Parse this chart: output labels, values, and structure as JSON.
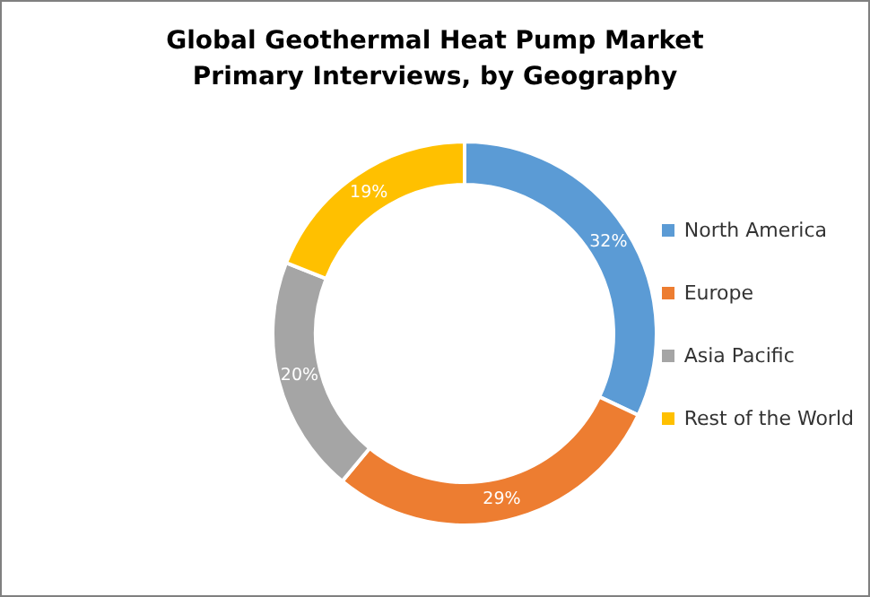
{
  "chart_data": {
    "type": "donut",
    "title": "Global Geothermal Heat Pump Market Primary Interviews, by Geography",
    "categories": [
      "North America",
      "Europe",
      "Asia Pacific",
      "Rest of the World"
    ],
    "values": [
      32,
      29,
      20,
      19
    ],
    "colors": [
      "#5b9bd5",
      "#ed7d31",
      "#a5a5a5",
      "#ffc000"
    ],
    "value_labels": [
      "32%",
      "29%",
      "20%",
      "19%"
    ],
    "legend": "right"
  }
}
